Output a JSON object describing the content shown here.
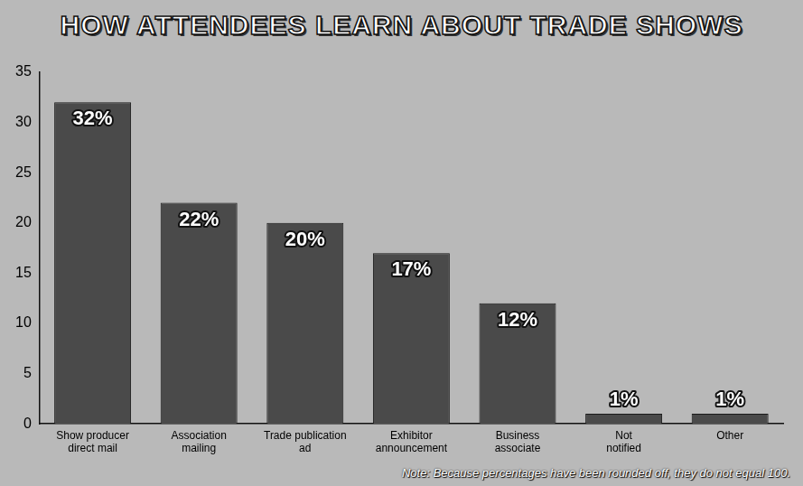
{
  "chart_data": {
    "type": "bar",
    "title": "HOW ATTENDEES LEARN ABOUT TRADE SHOWS",
    "categories": [
      "Show producer direct mail",
      "Association mailing",
      "Trade publication ad",
      "Exhibitor announcement",
      "Business associate",
      "Not notified",
      "Other"
    ],
    "values": [
      32,
      22,
      20,
      17,
      12,
      1,
      1
    ],
    "value_labels": [
      "32%",
      "22%",
      "20%",
      "17%",
      "12%",
      "1%",
      "1%"
    ],
    "data_labels": true,
    "color": "#4a4a4a",
    "ylim": [
      0,
      35
    ],
    "yticks": [
      0,
      5,
      10,
      15,
      20,
      25,
      30,
      35
    ],
    "grid": false,
    "annotations": [
      "Note: Because percentages have been rounded off, they do not equal 100."
    ]
  }
}
